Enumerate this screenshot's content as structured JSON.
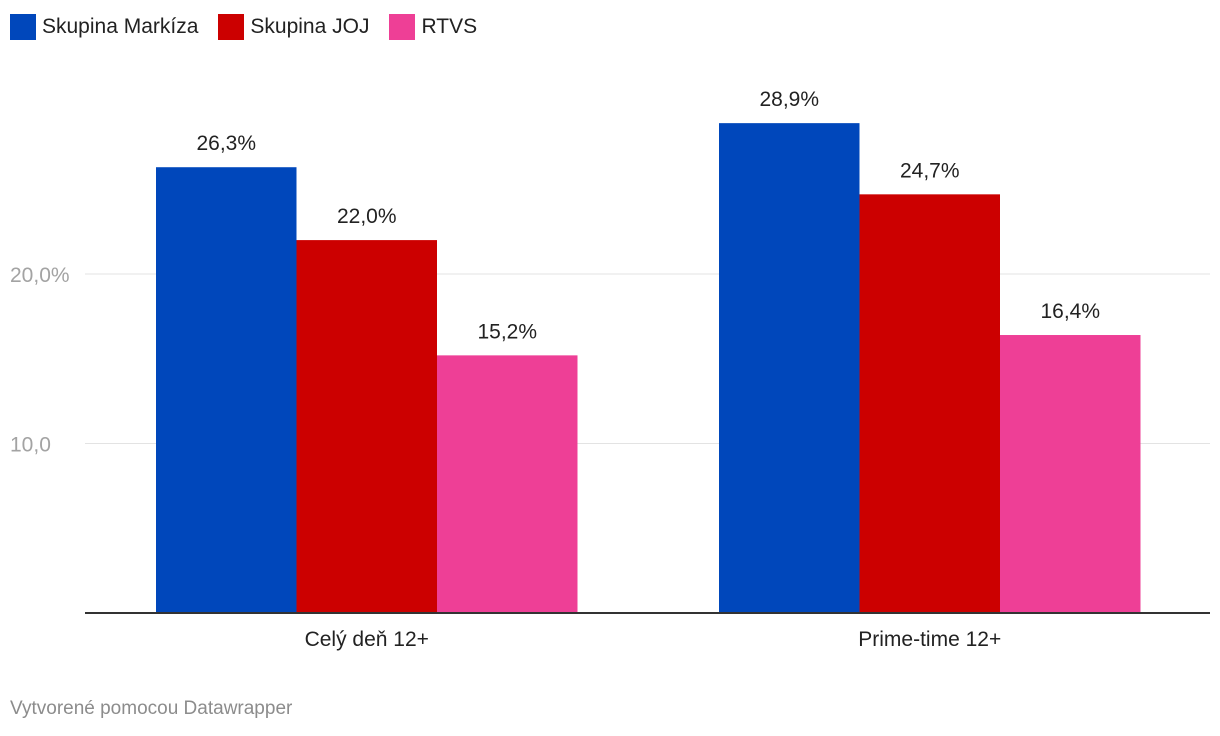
{
  "legend": [
    {
      "label": "Skupina Markíza",
      "color": "#0047bb"
    },
    {
      "label": "Skupina JOJ",
      "color": "#cc0000"
    },
    {
      "label": "RTVS",
      "color": "#ee3f96"
    }
  ],
  "chart_data": {
    "type": "bar",
    "categories": [
      "Celý deň 12+",
      "Prime-time 12+"
    ],
    "series": [
      {
        "name": "Skupina Markíza",
        "color": "#0047bb",
        "values": [
          26.3,
          28.9
        ],
        "labels": [
          "26,3%",
          "28,9%"
        ]
      },
      {
        "name": "Skupina JOJ",
        "color": "#cc0000",
        "values": [
          22.0,
          24.7
        ],
        "labels": [
          "22,0%",
          "24,7%"
        ]
      },
      {
        "name": "RTVS",
        "color": "#ee3f96",
        "values": [
          15.2,
          16.4
        ],
        "labels": [
          "15,2%",
          "16,4%"
        ]
      }
    ],
    "yticks": [
      {
        "value": 20,
        "label": "20,0%"
      },
      {
        "value": 10,
        "label": "10,0"
      }
    ],
    "ylim": [
      0,
      30
    ],
    "grid": true,
    "legend_position": "top-left",
    "xlabel": "",
    "ylabel": ""
  },
  "footer": {
    "credit": "Vytvorené pomocou Datawrapper"
  }
}
